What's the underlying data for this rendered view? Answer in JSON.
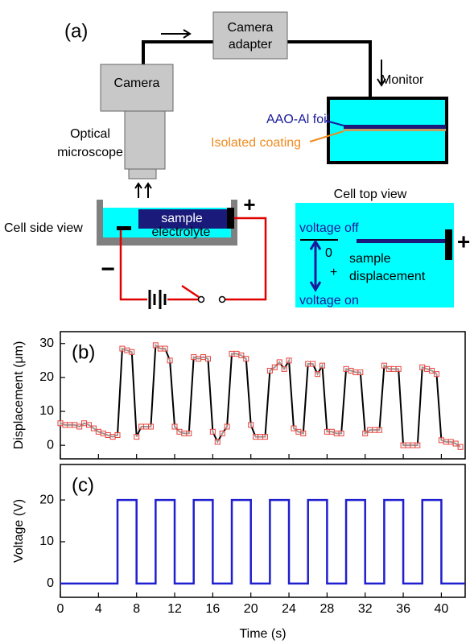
{
  "diagram": {
    "panel_label": "(a)",
    "camera": "Camera",
    "camera_adapter": [
      "Camera",
      "adapter"
    ],
    "monitor": "Monitor",
    "optical_microscope": [
      "Optical",
      "microscope"
    ],
    "foil_label": "AAO-Al foil",
    "coating_label": "Isolated coating",
    "cell_side_view": "Cell side view",
    "sample": "sample",
    "electrolyte": "electrolyte",
    "plus_terminal": "+",
    "minus_terminal": "−",
    "cell_top_view": "Cell top view",
    "voltage_off": "voltage off",
    "zero": "0",
    "plus_direction": "+",
    "sample_displacement": [
      "sample",
      "displacement"
    ],
    "voltage_on": "voltage on",
    "top_view_plus": "+"
  },
  "chart_data": [
    {
      "type": "line",
      "panel_label": "(b)",
      "y_label": "Displacement (μm)",
      "x": [
        0,
        0.5,
        1,
        1.5,
        2,
        2.5,
        3,
        3.5,
        4,
        4.5,
        5,
        5.5,
        6,
        6.5,
        7,
        7.5,
        8,
        8.5,
        9,
        9.5,
        10,
        10.5,
        11,
        11.5,
        12,
        12.5,
        13,
        13.5,
        14,
        14.5,
        15,
        15.5,
        16,
        16.5,
        17,
        17.5,
        18,
        18.5,
        19,
        19.5,
        20,
        20.5,
        21,
        21.5,
        22,
        22.5,
        23,
        23.5,
        24,
        24.5,
        25,
        25.5,
        26,
        26.5,
        27,
        27.5,
        28,
        28.5,
        29,
        29.5,
        30,
        30.5,
        31,
        31.5,
        32,
        32.5,
        33,
        33.5,
        34,
        34.5,
        35,
        35.5,
        36,
        36.5,
        37,
        37.5,
        38,
        38.5,
        39,
        39.5,
        40,
        40.5,
        41,
        41.5,
        42
      ],
      "series": [
        {
          "color": "#000000",
          "marker_color": "#e8403a",
          "marker": "square",
          "values": [
            6.5,
            6,
            6,
            6,
            5.5,
            6.5,
            6,
            5,
            4,
            3.5,
            3,
            2.5,
            3,
            28.5,
            28,
            27.5,
            2.5,
            5.5,
            5.5,
            5.5,
            29.5,
            28.5,
            28.5,
            25,
            5.5,
            4,
            3.5,
            3.5,
            26,
            25.5,
            26,
            25.5,
            4,
            1,
            3.5,
            5.5,
            27,
            27,
            26.5,
            25.5,
            6,
            2.5,
            2.5,
            2.5,
            22,
            23,
            24.5,
            22.5,
            25,
            5,
            4,
            3.5,
            24,
            24,
            21,
            23.5,
            4,
            4,
            3.5,
            3.5,
            22.5,
            22,
            21.5,
            21.5,
            3.5,
            4.5,
            4.5,
            4.5,
            23.5,
            22.5,
            22.5,
            22.5,
            0,
            0,
            0,
            0,
            23,
            22.5,
            22,
            21,
            1.5,
            1,
            1,
            0.5,
            -0.5
          ]
        }
      ],
      "xlim": [
        0,
        42.5
      ],
      "xticks": [
        0,
        4,
        8,
        12,
        16,
        20,
        24,
        28,
        32,
        36,
        40
      ],
      "ylim": [
        -4,
        33.5
      ],
      "yticks": [
        0,
        10,
        20,
        30
      ]
    },
    {
      "type": "line",
      "panel_label": "(c)",
      "y_label": "Voltage (V)",
      "x_label": "Time (s)",
      "x": [
        0,
        6,
        6,
        8,
        8,
        10,
        10,
        12,
        12,
        14,
        14,
        16,
        16,
        18,
        18,
        20,
        20,
        22,
        22,
        24,
        24,
        26,
        26,
        28,
        28,
        30,
        30,
        32,
        32,
        34,
        34,
        36,
        36,
        38,
        38,
        40,
        40,
        42.5
      ],
      "series": [
        {
          "color": "#1f1fd0",
          "values": [
            0,
            0,
            20,
            20,
            0,
            0,
            20,
            20,
            0,
            0,
            20,
            20,
            0,
            0,
            20,
            20,
            0,
            0,
            20,
            20,
            0,
            0,
            20,
            20,
            0,
            0,
            20,
            20,
            0,
            0,
            20,
            20,
            0,
            0,
            20,
            20,
            0,
            0
          ]
        }
      ],
      "xlim": [
        0,
        42.5
      ],
      "xticks": [
        0,
        4,
        8,
        12,
        16,
        20,
        24,
        28,
        32,
        36,
        40
      ],
      "ylim": [
        -3.3,
        28.5
      ],
      "yticks": [
        0,
        10,
        20
      ]
    }
  ]
}
